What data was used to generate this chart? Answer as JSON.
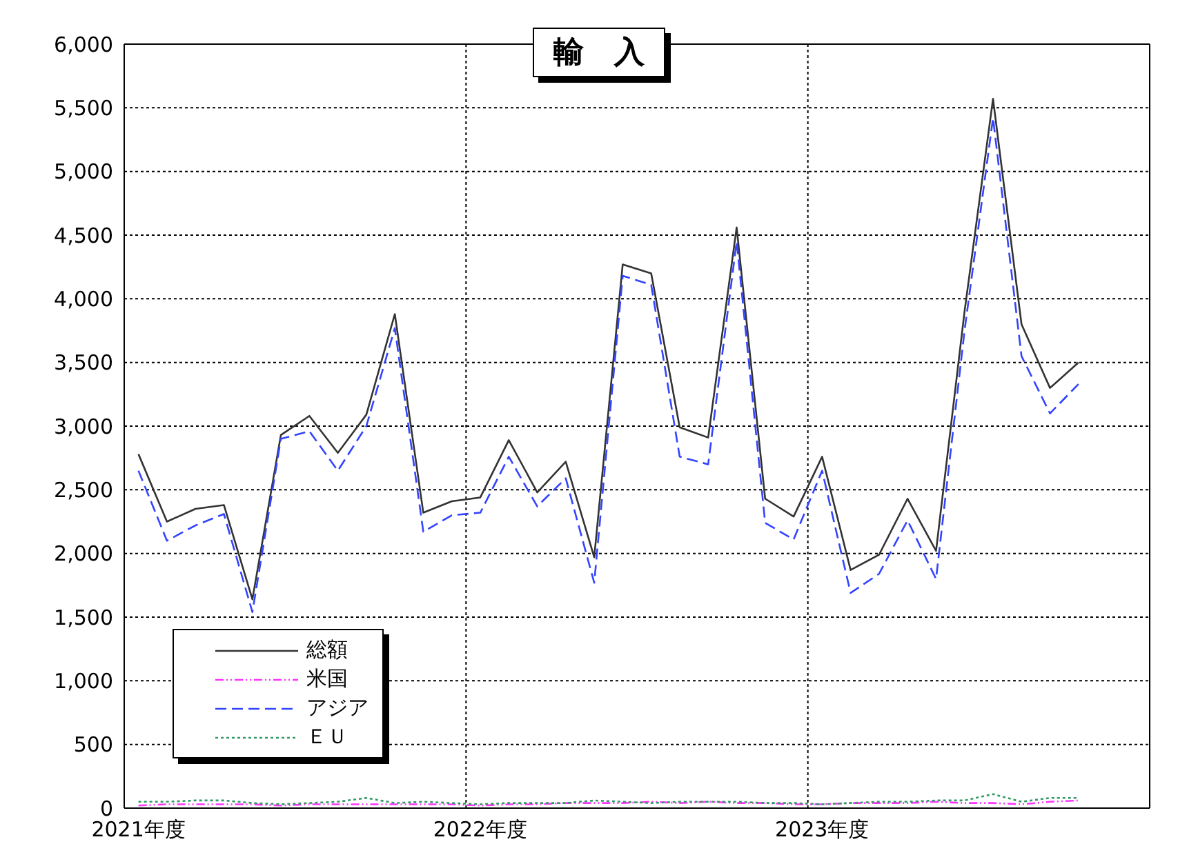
{
  "chart_data": {
    "type": "line",
    "title": "輸　入",
    "categories": [
      "2021年度",
      null,
      null,
      null,
      null,
      null,
      null,
      null,
      null,
      null,
      null,
      null,
      "2022年度",
      null,
      null,
      null,
      null,
      null,
      null,
      null,
      null,
      null,
      null,
      null,
      "2023年度",
      null,
      null,
      null,
      null,
      null,
      null,
      null,
      null,
      null,
      null,
      null
    ],
    "series": [
      {
        "name": "総額",
        "color": "#333333",
        "line_style": "solid",
        "values": [
          2780,
          2250,
          2350,
          2380,
          1640,
          2930,
          3080,
          2790,
          3090,
          3880,
          2320,
          2410,
          2440,
          2890,
          2480,
          2720,
          1970,
          4270,
          4200,
          2990,
          2910,
          4560,
          2430,
          2290,
          2760,
          1870,
          1990,
          2430,
          2020,
          3900,
          5570,
          3800,
          3300,
          3500,
          null,
          null
        ]
      },
      {
        "name": "米国",
        "color": "#ff33ff",
        "line_style": "dashdot",
        "values": [
          20,
          30,
          30,
          30,
          30,
          20,
          30,
          30,
          30,
          30,
          30,
          30,
          20,
          30,
          30,
          40,
          40,
          40,
          50,
          40,
          50,
          40,
          40,
          30,
          30,
          40,
          40,
          40,
          50,
          40,
          40,
          30,
          50,
          60,
          null,
          null
        ]
      },
      {
        "name": "アジア",
        "color": "#3344ff",
        "line_style": "dashed",
        "values": [
          2650,
          2100,
          2220,
          2310,
          1540,
          2900,
          2960,
          2650,
          3000,
          3770,
          2170,
          2300,
          2320,
          2760,
          2370,
          2590,
          1770,
          4180,
          4110,
          2760,
          2700,
          4450,
          2240,
          2110,
          2650,
          1690,
          1840,
          2260,
          1800,
          3750,
          5420,
          3550,
          3100,
          3330,
          null,
          null
        ]
      },
      {
        "name": "ＥＵ",
        "color": "#339966",
        "line_style": "dotted",
        "values": [
          50,
          50,
          60,
          60,
          40,
          30,
          40,
          50,
          80,
          40,
          50,
          40,
          30,
          40,
          40,
          40,
          60,
          50,
          40,
          50,
          50,
          50,
          40,
          40,
          30,
          40,
          50,
          50,
          60,
          60,
          110,
          50,
          80,
          80,
          null,
          null
        ]
      }
    ],
    "ylim": [
      0,
      6000
    ],
    "yticks": [
      {
        "value": 0,
        "label": "0"
      },
      {
        "value": 500,
        "label": "500"
      },
      {
        "value": 1000,
        "label": "1,000"
      },
      {
        "value": 1500,
        "label": "1,500"
      },
      {
        "value": 2000,
        "label": "2,000"
      },
      {
        "value": 2500,
        "label": "2,500"
      },
      {
        "value": 3000,
        "label": "3,000"
      },
      {
        "value": 3500,
        "label": "3,500"
      },
      {
        "value": 4000,
        "label": "4,000"
      },
      {
        "value": 4500,
        "label": "4,500"
      },
      {
        "value": 5000,
        "label": "5,000"
      },
      {
        "value": 5500,
        "label": "5,500"
      },
      {
        "value": 6000,
        "label": "6,000"
      }
    ],
    "grid": true,
    "legend": "bottom left",
    "marker": "none"
  }
}
